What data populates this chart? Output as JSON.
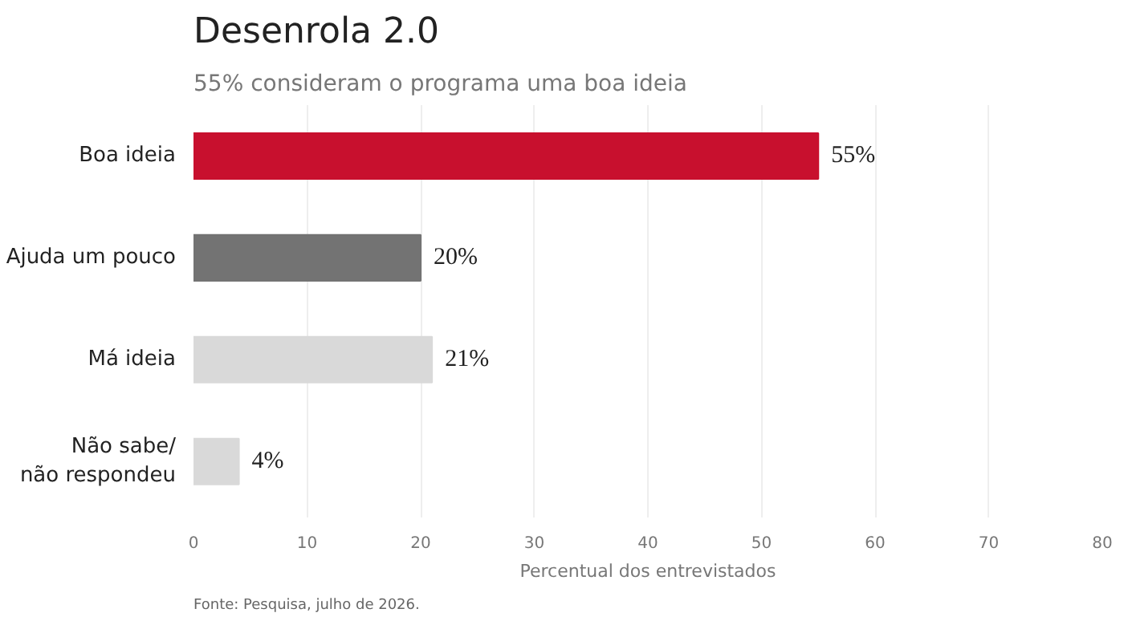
{
  "chart_data": {
    "type": "bar",
    "orientation": "horizontal",
    "title": "Desenrola 2.0",
    "subtitle": "55% consideram o programa uma boa ideia",
    "categories": [
      "Boa ideia",
      "Ajuda um pouco",
      "Má ideia",
      "Não sabe/\nnão respondeu"
    ],
    "values": [
      55,
      20,
      21,
      4
    ],
    "colors": [
      "#c8102e",
      "#737373",
      "#d9d9d9",
      "#d9d9d9"
    ],
    "value_labels": [
      "55%",
      "20%",
      "21%",
      "4%"
    ],
    "xlabel": "Percentual dos entrevistados",
    "xlim": [
      0,
      80
    ],
    "xticks": [
      0,
      10,
      20,
      30,
      40,
      50,
      60,
      70,
      80
    ],
    "grid": "x",
    "annotations": [
      "Fonte: Pesquisa, julho de 2026."
    ]
  }
}
